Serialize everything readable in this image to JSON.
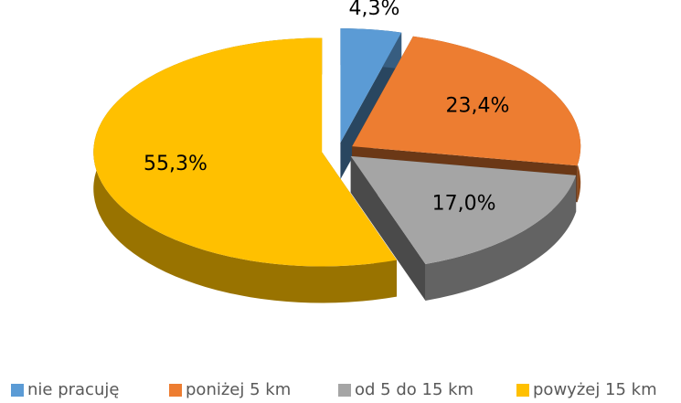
{
  "chart_data": {
    "type": "pie",
    "categories": [
      "nie pracuję",
      "poniżej 5 km",
      "od 5 do 15 km",
      "powyżej 15 km"
    ],
    "values": [
      4.3,
      23.4,
      17.0,
      55.3
    ],
    "value_labels": [
      "4,3%",
      "23,4%",
      "17,0%",
      "55,3%"
    ],
    "colors": [
      "#5b9bd5",
      "#ed7d31",
      "#a5a5a5",
      "#ffc000"
    ],
    "legend": "bottom"
  }
}
